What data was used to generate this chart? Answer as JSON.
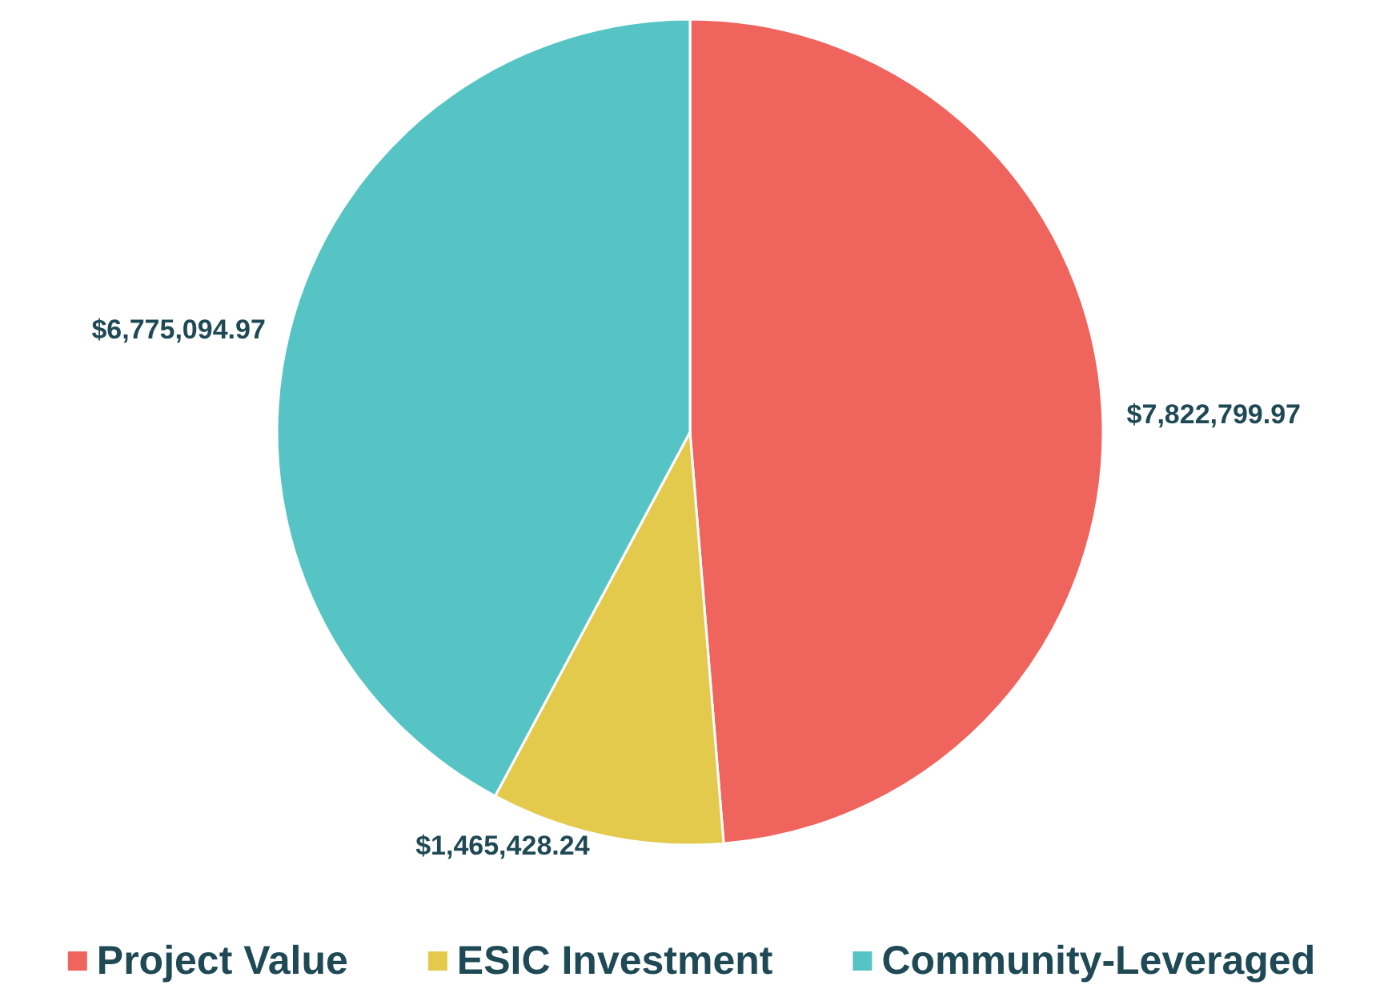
{
  "chart_data": {
    "type": "pie",
    "categories": [
      "Project Value",
      "ESIC Investment",
      "Community-Leveraged"
    ],
    "values": [
      7822799.97,
      1465428.24,
      6775094.97
    ],
    "colors": [
      "#f0645e",
      "#e3c94c",
      "#56c4c4"
    ],
    "value_labels": [
      "$7,822,799.97",
      "$1,465,428.24",
      "$6,775,094.97"
    ],
    "legend": "bottom"
  }
}
